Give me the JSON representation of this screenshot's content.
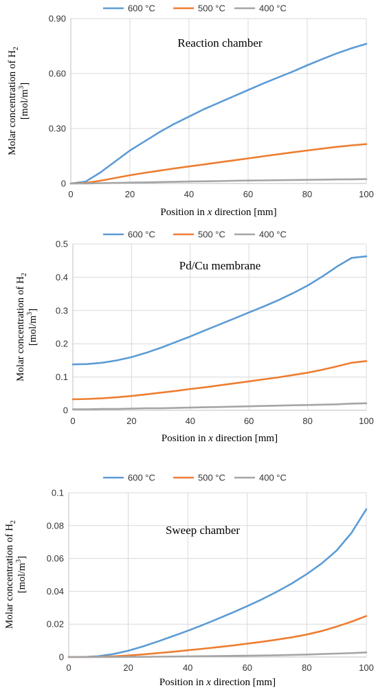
{
  "chart_data": [
    {
      "type": "line",
      "title": "Reaction chamber",
      "xlabel": {
        "pre": "Position in ",
        "var": "x",
        "post": " direction [mm]"
      },
      "ylabel": {
        "line1": "Molar concentration of H",
        "line1_sub": "2",
        "line2": "[mol/m",
        "line2_sup": "3",
        "line2_end": "]"
      },
      "xlim": [
        0,
        100
      ],
      "ylim": [
        0,
        0.9
      ],
      "xticks": [
        0,
        20,
        40,
        60,
        80,
        100
      ],
      "xtick_labels": [
        "0",
        "20",
        "40",
        "60",
        "80",
        "100"
      ],
      "yticks": [
        0,
        0.3,
        0.6,
        0.9
      ],
      "ytick_labels": [
        "0",
        "0.30",
        "0.60",
        "0.90"
      ],
      "legend_position": "top",
      "grid": true,
      "x": [
        0,
        5,
        10,
        15,
        20,
        25,
        30,
        35,
        40,
        45,
        50,
        55,
        60,
        65,
        70,
        75,
        80,
        85,
        90,
        95,
        100
      ],
      "series": [
        {
          "name": "600 °C",
          "color": "#5b9bd5",
          "values": [
            0,
            0.01,
            0.06,
            0.12,
            0.18,
            0.23,
            0.28,
            0.325,
            0.365,
            0.405,
            0.44,
            0.475,
            0.51,
            0.545,
            0.578,
            0.61,
            0.645,
            0.678,
            0.71,
            0.738,
            0.762
          ]
        },
        {
          "name": "500 °C",
          "color": "#ed7d31",
          "values": [
            0,
            0.003,
            0.015,
            0.03,
            0.045,
            0.058,
            0.07,
            0.082,
            0.093,
            0.104,
            0.115,
            0.126,
            0.137,
            0.148,
            0.159,
            0.17,
            0.18,
            0.19,
            0.2,
            0.208,
            0.215
          ]
        },
        {
          "name": "400 °C",
          "color": "#a5a5a5",
          "values": [
            0,
            0,
            0.002,
            0.003,
            0.005,
            0.006,
            0.008,
            0.009,
            0.011,
            0.012,
            0.013,
            0.015,
            0.016,
            0.017,
            0.018,
            0.019,
            0.02,
            0.021,
            0.022,
            0.023,
            0.024
          ]
        }
      ]
    },
    {
      "type": "line",
      "title": "Pd/Cu membrane",
      "xlabel": {
        "pre": "Position in ",
        "var": "x",
        "post": " direction [mm]"
      },
      "ylabel": {
        "line1": "Molar concentration of H",
        "line1_sub": "2",
        "line2": "[mol/m",
        "line2_sup": "3",
        "line2_end": "]"
      },
      "xlim": [
        0,
        100
      ],
      "ylim": [
        0,
        0.5
      ],
      "xticks": [
        0,
        20,
        40,
        60,
        80,
        100
      ],
      "xtick_labels": [
        "0",
        "20",
        "40",
        "60",
        "80",
        "100"
      ],
      "yticks": [
        0,
        0.1,
        0.2,
        0.3,
        0.4,
        0.5
      ],
      "ytick_labels": [
        "0",
        "0.1",
        "0.2",
        "0.3",
        "0.4",
        "0.5"
      ],
      "legend_position": "top",
      "grid": true,
      "x": [
        0,
        5,
        10,
        15,
        20,
        25,
        30,
        35,
        40,
        45,
        50,
        55,
        60,
        65,
        70,
        75,
        80,
        85,
        90,
        95,
        100
      ],
      "series": [
        {
          "name": "600 °C",
          "color": "#5b9bd5",
          "values": [
            0.138,
            0.139,
            0.143,
            0.15,
            0.16,
            0.173,
            0.188,
            0.205,
            0.222,
            0.24,
            0.258,
            0.276,
            0.294,
            0.312,
            0.331,
            0.352,
            0.375,
            0.402,
            0.432,
            0.458,
            0.463
          ]
        },
        {
          "name": "500 °C",
          "color": "#ed7d31",
          "values": [
            0.033,
            0.034,
            0.036,
            0.039,
            0.043,
            0.048,
            0.053,
            0.058,
            0.064,
            0.069,
            0.075,
            0.081,
            0.087,
            0.093,
            0.099,
            0.106,
            0.113,
            0.122,
            0.132,
            0.143,
            0.148
          ]
        },
        {
          "name": "400 °C",
          "color": "#a5a5a5",
          "values": [
            0.003,
            0.003,
            0.004,
            0.004,
            0.005,
            0.006,
            0.006,
            0.007,
            0.008,
            0.009,
            0.01,
            0.011,
            0.012,
            0.013,
            0.014,
            0.015,
            0.016,
            0.017,
            0.018,
            0.02,
            0.021
          ]
        }
      ]
    },
    {
      "type": "line",
      "title": "Sweep chamber",
      "xlabel": {
        "pre": "Position in ",
        "var": "x",
        "post": " direction [mm]"
      },
      "ylabel": {
        "line1": "Molar concentration of H",
        "line1_sub": "2",
        "line2": "[mol/m",
        "line2_sup": "3",
        "line2_end": "]"
      },
      "xlim": [
        0,
        100
      ],
      "ylim": [
        0,
        0.1
      ],
      "xticks": [
        0,
        20,
        40,
        60,
        80,
        100
      ],
      "xtick_labels": [
        "0",
        "20",
        "40",
        "60",
        "80",
        "100"
      ],
      "yticks": [
        0,
        0.02,
        0.04,
        0.06,
        0.08,
        0.1
      ],
      "ytick_labels": [
        "0",
        "0.02",
        "0.04",
        "0.06",
        "0.08",
        "0.1"
      ],
      "legend_position": "top",
      "grid": true,
      "x": [
        0,
        5,
        10,
        15,
        20,
        25,
        30,
        35,
        40,
        45,
        50,
        55,
        60,
        65,
        70,
        75,
        80,
        85,
        90,
        95,
        100
      ],
      "series": [
        {
          "name": "600 °C",
          "color": "#5b9bd5",
          "values": [
            0,
            0,
            0.0005,
            0.0018,
            0.0038,
            0.0065,
            0.0095,
            0.0127,
            0.016,
            0.0195,
            0.0232,
            0.027,
            0.031,
            0.0352,
            0.0398,
            0.0448,
            0.0505,
            0.057,
            0.0648,
            0.0755,
            0.09
          ]
        },
        {
          "name": "500 °C",
          "color": "#ed7d31",
          "values": [
            0,
            0,
            0.0001,
            0.0004,
            0.0009,
            0.0016,
            0.0024,
            0.0032,
            0.0041,
            0.005,
            0.006,
            0.007,
            0.0081,
            0.0093,
            0.0106,
            0.012,
            0.0137,
            0.0158,
            0.0185,
            0.0215,
            0.025
          ]
        },
        {
          "name": "400 °C",
          "color": "#a5a5a5",
          "values": [
            0,
            0,
            0,
            0,
            0.0001,
            0.0001,
            0.0002,
            0.0003,
            0.0004,
            0.0005,
            0.0006,
            0.0007,
            0.0008,
            0.0009,
            0.0011,
            0.0013,
            0.0015,
            0.0018,
            0.0021,
            0.0024,
            0.0028
          ]
        }
      ]
    }
  ]
}
